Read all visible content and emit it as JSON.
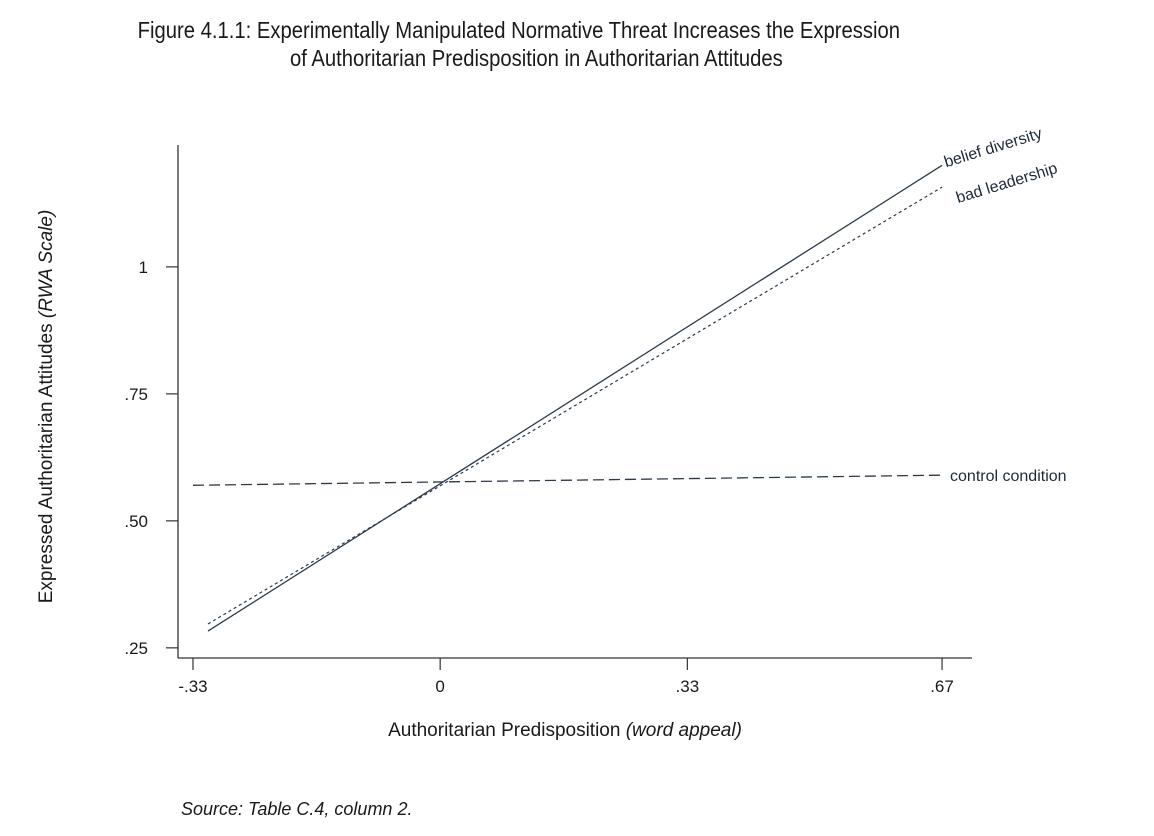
{
  "figure": {
    "title_line1": "Figure 4.1.1: Experimentally Manipulated Normative Threat Increases the Expression",
    "title_line2": "of Authoritarian Predisposition in Authoritarian Attitudes",
    "source": "Source: Table C.4, column 2."
  },
  "chart_data": {
    "type": "line",
    "title": "Figure 4.1.1: Experimentally Manipulated Normative Threat Increases the Expression of Authoritarian Predisposition in Authoritarian Attitudes",
    "xlabel_main": "Authoritarian Predisposition ",
    "xlabel_italic": "(word appeal)",
    "ylabel_main": "Expressed Authoritarian Attitudes ",
    "ylabel_italic": "(RWA Scale)",
    "xlim": [
      -0.35,
      0.71
    ],
    "ylim": [
      0.23,
      1.24
    ],
    "x_ticks": [
      {
        "value": -0.33,
        "label": "-.33"
      },
      {
        "value": 0,
        "label": "0"
      },
      {
        "value": 0.33,
        "label": ".33"
      },
      {
        "value": 0.67,
        "label": ".67"
      }
    ],
    "y_ticks": [
      {
        "value": 0.25,
        "label": ".25"
      },
      {
        "value": 0.5,
        "label": ".50"
      },
      {
        "value": 0.75,
        "label": ".75"
      },
      {
        "value": 1,
        "label": "1"
      }
    ],
    "grid": false,
    "legend": "none (lines labeled directly at right end)",
    "series": [
      {
        "name": "belief diversity",
        "style": "solid",
        "color": "#2b3a4a",
        "x": [
          -0.31,
          0.67
        ],
        "y": [
          0.283,
          1.2
        ]
      },
      {
        "name": "bad leadership",
        "style": "dotted",
        "color": "#2b3a4a",
        "x": [
          -0.31,
          0.67
        ],
        "y": [
          0.297,
          1.157
        ]
      },
      {
        "name": "control condition",
        "style": "dashed",
        "color": "#2b3a4a",
        "x": [
          -0.33,
          0.67
        ],
        "y": [
          0.57,
          0.59
        ]
      }
    ]
  }
}
